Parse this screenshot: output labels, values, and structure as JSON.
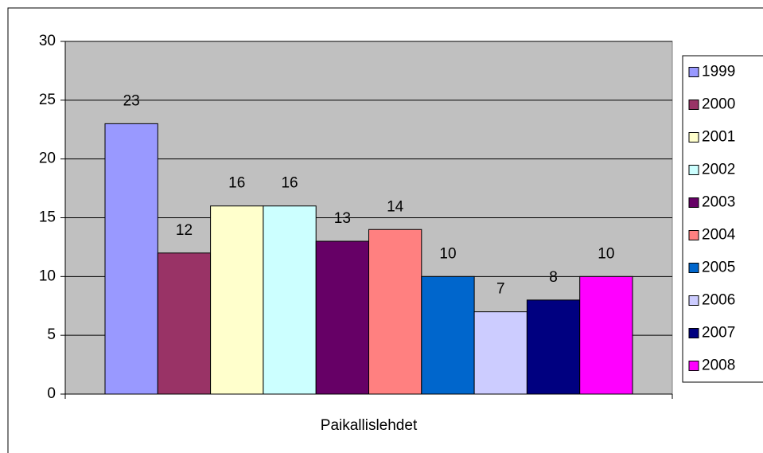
{
  "chart_data": {
    "type": "bar",
    "categories": [
      "Paikallislehdet"
    ],
    "series": [
      {
        "name": "1999",
        "color": "#9999ff",
        "values": [
          23
        ]
      },
      {
        "name": "2000",
        "color": "#993366",
        "values": [
          12
        ]
      },
      {
        "name": "2001",
        "color": "#ffffcc",
        "values": [
          16
        ]
      },
      {
        "name": "2002",
        "color": "#ccffff",
        "values": [
          16
        ]
      },
      {
        "name": "2003",
        "color": "#660066",
        "values": [
          13
        ]
      },
      {
        "name": "2004",
        "color": "#ff8080",
        "values": [
          14
        ]
      },
      {
        "name": "2005",
        "color": "#0066cc",
        "values": [
          10
        ]
      },
      {
        "name": "2006",
        "color": "#ccccff",
        "values": [
          7
        ]
      },
      {
        "name": "2007",
        "color": "#000080",
        "values": [
          8
        ]
      },
      {
        "name": "2008",
        "color": "#ff00ff",
        "values": [
          10
        ]
      }
    ],
    "ylim": [
      0,
      30
    ],
    "yticks": [
      0,
      5,
      10,
      15,
      20,
      25,
      30
    ],
    "grid": true,
    "legend": "right"
  }
}
